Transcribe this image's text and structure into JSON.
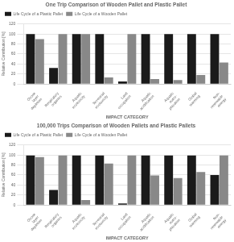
{
  "chart_data": [
    {
      "type": "bar",
      "title": "One Trip Comparison of Wooden Pallet and Plastic Pallet",
      "categories": [
        "Ozone\nlayer\ndepletion",
        "Respiratory\norganics",
        "Aquatic\necotoxicity",
        "Terrestrial\necotoxicity",
        "Land\noccupation",
        "Aquatic\nacidification",
        "Aquatic\neutro-\nphication",
        "Global\nwarming",
        "Non-\nrenewable\nenergy"
      ],
      "series": [
        {
          "name": "Life Cycle of a Plastic Pallet",
          "color": "#1a1a1a",
          "values": [
            100,
            32,
            100,
            100,
            5,
            100,
            100,
            100,
            100
          ]
        },
        {
          "name": "Life Cycle of a Wooden Pallet",
          "color": "#888888",
          "values": [
            90,
            100,
            100,
            13,
            100,
            10,
            8,
            18,
            43
          ]
        }
      ],
      "xlabel": "IMPACT CATEGORY",
      "ylabel": "Relative Contribution [%]",
      "ylim": [
        0,
        120
      ],
      "yticks": [
        0,
        20,
        40,
        60,
        80,
        100,
        120
      ],
      "grid": true,
      "legend": "upper left"
    },
    {
      "type": "bar",
      "title": "100,000 Trips Comparison of Wooden Pallets and Plastic Pallets",
      "categories": [
        "Ozone\nlayer\ndepletion",
        "Respiratory\norganics",
        "Aquatic\necotoxicity",
        "Terrestrial\necotoxicity",
        "Land\noccupation",
        "Aquatic\nacidification",
        "Aquatic\neutro-\nphication",
        "Global\nwarming",
        "Non-\nrenewable\nenergy"
      ],
      "series": [
        {
          "name": "Life Cycle of a Plastic Pallet",
          "color": "#1a1a1a",
          "values": [
            99,
            30,
            99,
            99,
            3,
            99,
            99,
            99,
            60
          ]
        },
        {
          "name": "Life Cycle of a Wooden Pallet",
          "color": "#888888",
          "values": [
            96,
            99,
            10,
            83,
            99,
            59,
            54,
            66,
            99
          ]
        }
      ],
      "xlabel": "IMPACT CATEGORY",
      "ylabel": "Relative Contribution [%]",
      "ylim": [
        0,
        120
      ],
      "yticks": [
        0,
        20,
        40,
        60,
        80,
        100,
        120
      ],
      "grid": true,
      "legend": "upper left"
    }
  ]
}
